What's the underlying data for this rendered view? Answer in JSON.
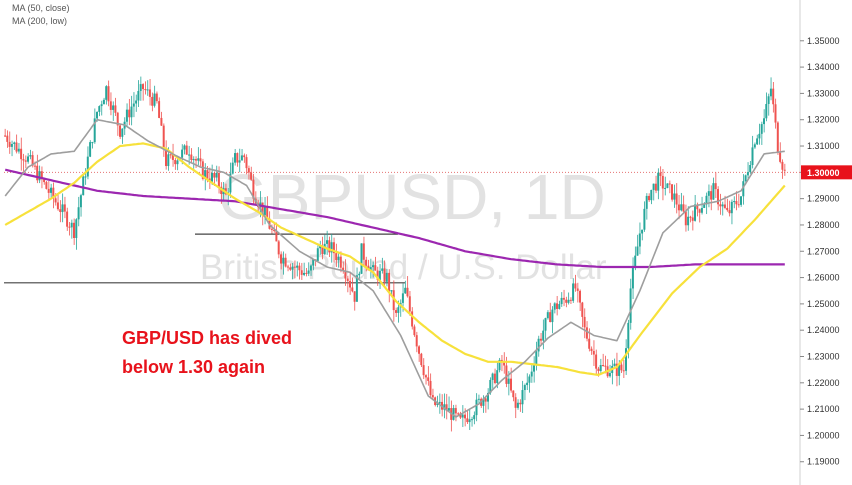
{
  "chart_data": {
    "type": "candlestick",
    "symbol": "GBPUSD",
    "timeframe": "1D",
    "description": "British Pound / U.S. Dollar",
    "legend": [
      "MA (50, close)",
      "MA (200, low)"
    ],
    "annotation_lines": [
      "GBP/USD has dived",
      "below 1.30 again"
    ],
    "y_ticks": [
      "1.35000",
      "1.34000",
      "1.33000",
      "1.32000",
      "1.31000",
      "1.30000",
      "1.29000",
      "1.28000",
      "1.27000",
      "1.26000",
      "1.25000",
      "1.24000",
      "1.23000",
      "1.22000",
      "1.21000",
      "1.20000",
      "1.19000"
    ],
    "ylim": [
      1.188,
      1.356
    ],
    "price_label": "1.30000",
    "price_level": 1.3,
    "horizontal_levels": [
      1.2765,
      1.258
    ],
    "colors": {
      "up": "#26a69a",
      "down": "#ef5350",
      "ma_fast": "#9e9e9e",
      "ma_50": "#f7e13b",
      "ma_200": "#9c27b0",
      "annotation": "#e8121b",
      "price_badge": "#e8121b"
    },
    "close_path": [
      [
        0,
        1.314
      ],
      [
        10,
        1.305
      ],
      [
        18,
        1.294
      ],
      [
        25,
        1.285
      ],
      [
        30,
        1.278
      ],
      [
        34,
        1.296
      ],
      [
        40,
        1.323
      ],
      [
        44,
        1.332
      ],
      [
        50,
        1.316
      ],
      [
        55,
        1.325
      ],
      [
        60,
        1.332
      ],
      [
        66,
        1.326
      ],
      [
        70,
        1.304
      ],
      [
        75,
        1.306
      ],
      [
        80,
        1.309
      ],
      [
        86,
        1.3
      ],
      [
        92,
        1.297
      ],
      [
        96,
        1.291
      ],
      [
        100,
        1.305
      ],
      [
        104,
        1.306
      ],
      [
        108,
        1.293
      ],
      [
        114,
        1.282
      ],
      [
        120,
        1.268
      ],
      [
        126,
        1.264
      ],
      [
        132,
        1.261
      ],
      [
        137,
        1.272
      ],
      [
        142,
        1.271
      ],
      [
        147,
        1.265
      ],
      [
        152,
        1.253
      ],
      [
        155,
        1.27
      ],
      [
        160,
        1.262
      ],
      [
        166,
        1.26
      ],
      [
        170,
        1.245
      ],
      [
        174,
        1.255
      ],
      [
        180,
        1.232
      ],
      [
        186,
        1.212
      ],
      [
        192,
        1.21
      ],
      [
        198,
        1.205
      ],
      [
        204,
        1.21
      ],
      [
        210,
        1.217
      ],
      [
        216,
        1.228
      ],
      [
        222,
        1.21
      ],
      [
        228,
        1.222
      ],
      [
        232,
        1.236
      ],
      [
        238,
        1.248
      ],
      [
        244,
        1.252
      ],
      [
        248,
        1.256
      ],
      [
        252,
        1.24
      ],
      [
        258,
        1.226
      ],
      [
        264,
        1.225
      ],
      [
        269,
        1.225
      ],
      [
        272,
        1.256
      ],
      [
        276,
        1.277
      ],
      [
        280,
        1.292
      ],
      [
        284,
        1.297
      ],
      [
        290,
        1.292
      ],
      [
        296,
        1.282
      ],
      [
        302,
        1.287
      ],
      [
        308,
        1.293
      ],
      [
        314,
        1.284
      ],
      [
        320,
        1.291
      ],
      [
        326,
        1.313
      ],
      [
        330,
        1.32
      ],
      [
        333,
        1.332
      ],
      [
        336,
        1.31
      ],
      [
        339,
        1.3
      ]
    ],
    "ma_fast": [
      [
        0,
        1.291
      ],
      [
        10,
        1.302
      ],
      [
        20,
        1.307
      ],
      [
        30,
        1.308
      ],
      [
        40,
        1.32
      ],
      [
        52,
        1.318
      ],
      [
        62,
        1.312
      ],
      [
        75,
        1.306
      ],
      [
        85,
        1.302
      ],
      [
        95,
        1.3
      ],
      [
        105,
        1.295
      ],
      [
        115,
        1.28
      ],
      [
        128,
        1.27
      ],
      [
        140,
        1.264
      ],
      [
        150,
        1.262
      ],
      [
        160,
        1.255
      ],
      [
        172,
        1.238
      ],
      [
        184,
        1.215
      ],
      [
        196,
        1.207
      ],
      [
        206,
        1.212
      ],
      [
        216,
        1.221
      ],
      [
        226,
        1.228
      ],
      [
        236,
        1.237
      ],
      [
        246,
        1.243
      ],
      [
        256,
        1.238
      ],
      [
        266,
        1.236
      ],
      [
        276,
        1.255
      ],
      [
        286,
        1.277
      ],
      [
        298,
        1.287
      ],
      [
        310,
        1.289
      ],
      [
        320,
        1.293
      ],
      [
        330,
        1.307
      ],
      [
        339,
        1.308
      ]
    ],
    "ma_50": [
      [
        0,
        1.28
      ],
      [
        10,
        1.285
      ],
      [
        20,
        1.29
      ],
      [
        30,
        1.296
      ],
      [
        40,
        1.304
      ],
      [
        50,
        1.31
      ],
      [
        60,
        1.311
      ],
      [
        70,
        1.309
      ],
      [
        80,
        1.302
      ],
      [
        90,
        1.296
      ],
      [
        100,
        1.29
      ],
      [
        110,
        1.285
      ],
      [
        120,
        1.279
      ],
      [
        130,
        1.275
      ],
      [
        140,
        1.271
      ],
      [
        150,
        1.268
      ],
      [
        160,
        1.262
      ],
      [
        170,
        1.251
      ],
      [
        180,
        1.243
      ],
      [
        190,
        1.236
      ],
      [
        200,
        1.231
      ],
      [
        210,
        1.228
      ],
      [
        220,
        1.228
      ],
      [
        230,
        1.227
      ],
      [
        240,
        1.226
      ],
      [
        250,
        1.224
      ],
      [
        258,
        1.223
      ],
      [
        266,
        1.226
      ],
      [
        276,
        1.238
      ],
      [
        290,
        1.254
      ],
      [
        302,
        1.264
      ],
      [
        314,
        1.271
      ],
      [
        326,
        1.282
      ],
      [
        339,
        1.295
      ]
    ],
    "ma_200": [
      [
        0,
        1.301
      ],
      [
        20,
        1.297
      ],
      [
        40,
        1.293
      ],
      [
        60,
        1.291
      ],
      [
        80,
        1.29
      ],
      [
        100,
        1.289
      ],
      [
        120,
        1.286
      ],
      [
        140,
        1.283
      ],
      [
        160,
        1.279
      ],
      [
        180,
        1.275
      ],
      [
        200,
        1.27
      ],
      [
        220,
        1.267
      ],
      [
        240,
        1.265
      ],
      [
        260,
        1.264
      ],
      [
        280,
        1.264
      ],
      [
        300,
        1.265
      ],
      [
        320,
        1.265
      ],
      [
        339,
        1.265
      ]
    ]
  }
}
